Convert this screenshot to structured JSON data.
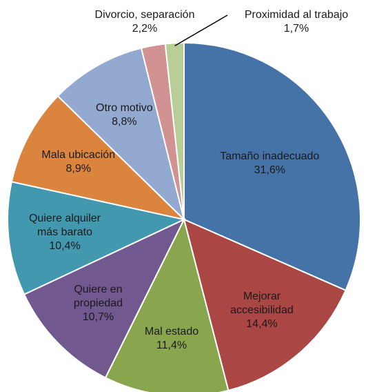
{
  "chart_data": {
    "type": "pie",
    "categories": [
      "Tamaño inadecuado",
      "Mejorar accesibilidad",
      "Mal estado",
      "Quiere en propiedad",
      "Quiere alquiler más barato",
      "Mala ubicación",
      "Otro motivo",
      "Divorcio, separación",
      "Proximidad al trabajo"
    ],
    "values": [
      31.6,
      14.4,
      11.4,
      10.7,
      10.4,
      8.9,
      8.8,
      2.2,
      1.7
    ],
    "value_labels": [
      "31,6%",
      "14,4%",
      "11,4%",
      "10,7%",
      "10,4%",
      "8,9%",
      "8,8%",
      "2,2%",
      "1,7%"
    ],
    "colors": [
      "#4572a7",
      "#aa4643",
      "#89a54e",
      "#71588f",
      "#4198af",
      "#db843d",
      "#93a9cf",
      "#d19392",
      "#b9cd96"
    ]
  }
}
